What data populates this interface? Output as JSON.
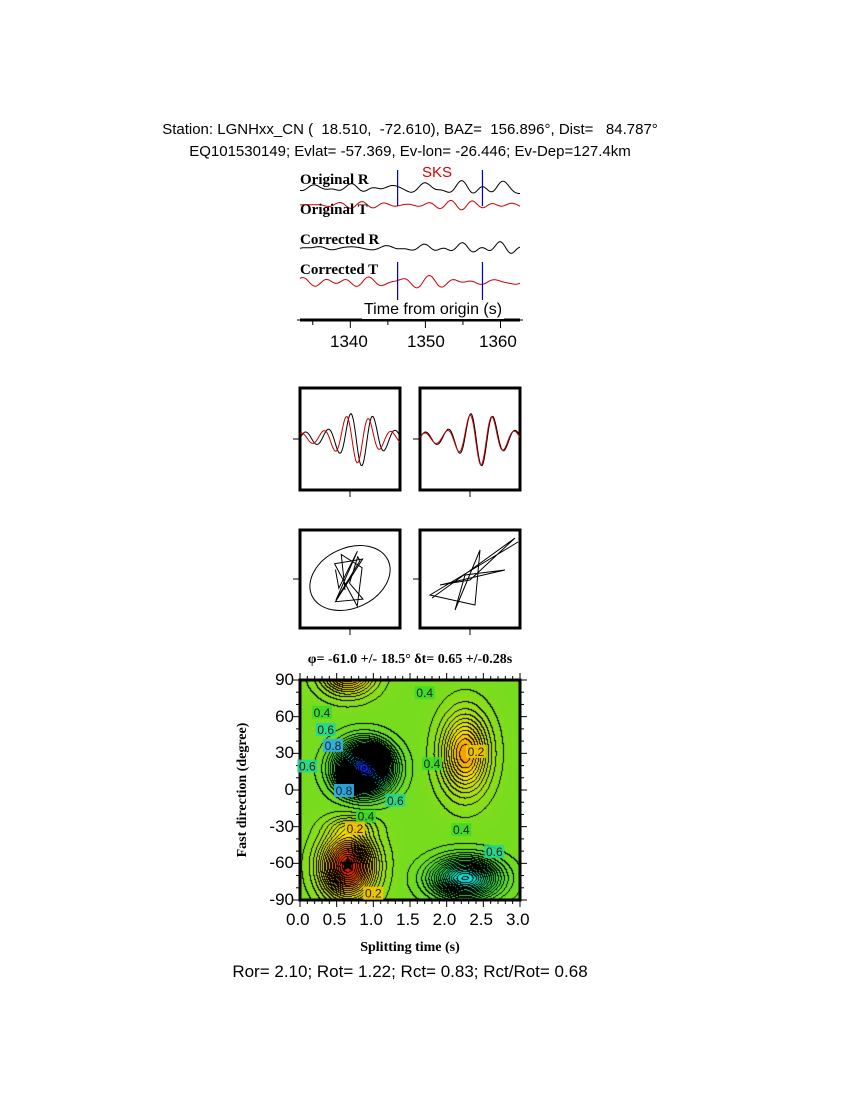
{
  "header": {
    "line1": "Station: LGNHxx_CN (  18.510,  -72.610), BAZ=  156.896°, Dist=   84.787°",
    "line2": "EQ101530149; Evlat= -57.369, Ev-lon= -26.446; Ev-Dep=127.4km"
  },
  "colors": {
    "trace_r": "#000000",
    "trace_t": "#cc0000",
    "window_marker": "#0000cc",
    "phase_label": "#dd0000"
  },
  "chart_data": [
    {
      "type": "line",
      "title": "",
      "phase_label": "SKS",
      "traces": [
        "Original R",
        "Original T",
        "Corrected R",
        "Corrected T"
      ],
      "xlabel": "Time from origin (s)",
      "xlim": [
        1333.3,
        1362.6
      ],
      "xticks": [
        "1340",
        "1350",
        "1360"
      ],
      "xtick_values": [
        1340,
        1350,
        1360
      ],
      "window": [
        1346.3,
        1357.6
      ]
    },
    {
      "type": "line",
      "title": "",
      "panels": [
        "waveform-comparison-original",
        "waveform-comparison-corrected",
        "particle-motion-original",
        "particle-motion-corrected"
      ]
    },
    {
      "type": "heatmap",
      "title": "φ= -61.0 +/- 18.5° δt= 0.65 +/-0.28s",
      "xlabel": "Splitting time (s)",
      "ylabel": "Fast direction (degree)",
      "xlim": [
        0,
        3
      ],
      "ylim": [
        -90,
        90
      ],
      "xticks": [
        "0.0",
        "0.5",
        "1.0",
        "1.5",
        "2.0",
        "2.5",
        "3.0"
      ],
      "yticks": [
        "90",
        "60",
        "30",
        "0",
        "-30",
        "-60",
        "-90"
      ],
      "best_estimate": {
        "dt": 0.65,
        "phi": -61.0
      },
      "contour_labels": [
        {
          "text": "0.4",
          "x": 0.3,
          "y": 64
        },
        {
          "text": "0.6",
          "x": 0.35,
          "y": 50
        },
        {
          "text": "0.8",
          "x": 0.45,
          "y": 37
        },
        {
          "text": "0.4",
          "x": 1.7,
          "y": 80
        },
        {
          "text": "0.2",
          "x": 2.4,
          "y": 32
        },
        {
          "text": "0.4",
          "x": 1.8,
          "y": 22
        },
        {
          "text": "0.6",
          "x": 0.1,
          "y": 20
        },
        {
          "text": "0.8",
          "x": 0.6,
          "y": 0
        },
        {
          "text": "0.6",
          "x": 1.3,
          "y": -8
        },
        {
          "text": "0.4",
          "x": 0.9,
          "y": -21
        },
        {
          "text": "0.2",
          "x": 0.75,
          "y": -31
        },
        {
          "text": "0.4",
          "x": 2.2,
          "y": -32
        },
        {
          "text": "0.6",
          "x": 2.65,
          "y": -50
        },
        {
          "text": "0.2",
          "x": 1.0,
          "y": -84
        }
      ]
    }
  ],
  "footer": "Ror= 2.10; Rot= 1.22; Rct= 0.83; Rct/Rot= 0.68"
}
